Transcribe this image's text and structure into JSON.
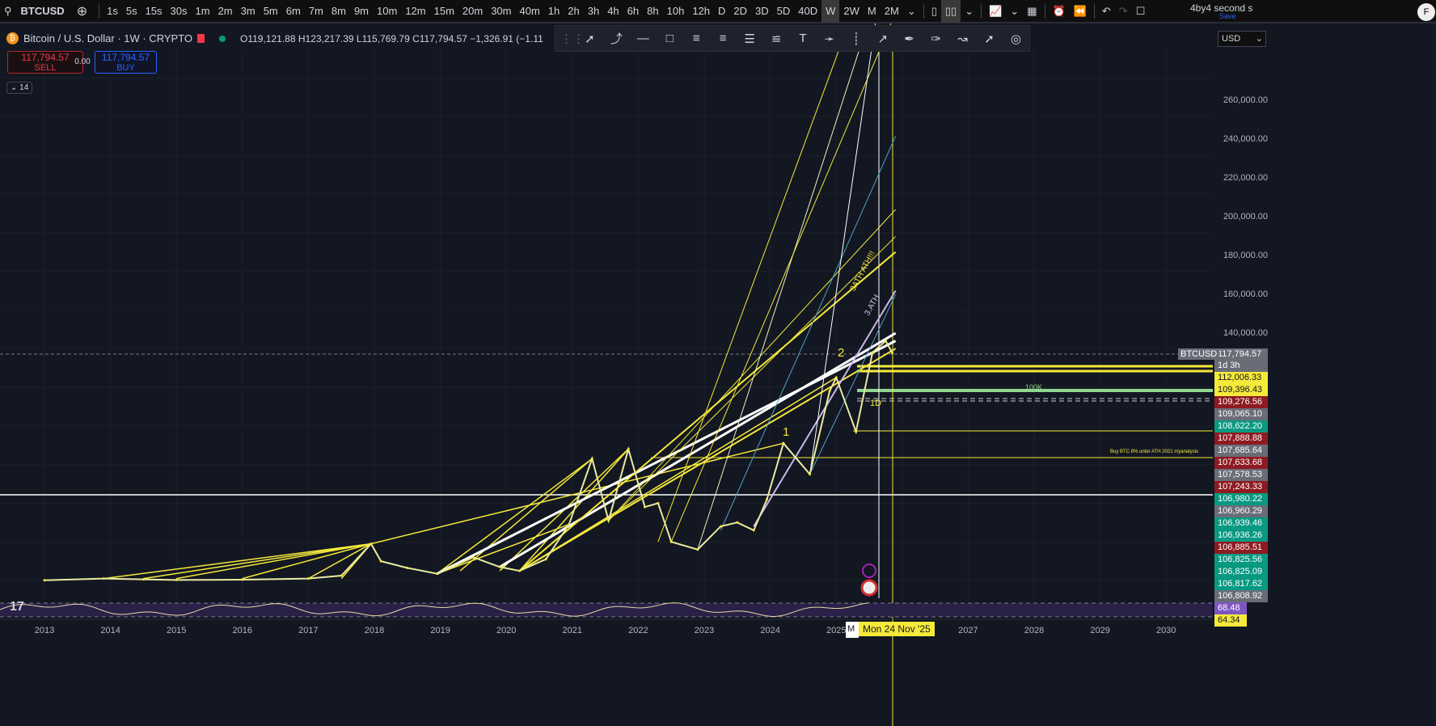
{
  "topbar": {
    "symbol": "BTCUSD",
    "intervals": [
      "1s",
      "5s",
      "15s",
      "30s",
      "1m",
      "2m",
      "3m",
      "5m",
      "6m",
      "7m",
      "8m",
      "9m",
      "10m",
      "12m",
      "15m",
      "20m",
      "30m",
      "40m",
      "1h",
      "2h",
      "3h",
      "4h",
      "6h",
      "8h",
      "10h",
      "12h",
      "D",
      "2D",
      "3D",
      "5D",
      "40D",
      "W",
      "2W",
      "M",
      "2M"
    ],
    "active_interval": "W",
    "layout_name": "4by4 second s",
    "save_label": "Save",
    "avatar_initial": "F"
  },
  "legend": {
    "title": "Bitcoin / U.S. Dollar · 1W · CRYPTO",
    "ohlc": "O119,121.88 H123,217.39 L115,769.79 C117,794.57 −1,326.91 (−1.11",
    "sell_price": "117,794.57",
    "sell_label": "SELL",
    "spread": "0.00",
    "buy_price": "117,794.57",
    "buy_label": "BUY",
    "indicator_count": "14"
  },
  "currency": "USD",
  "price_axis": [
    "260,000.00",
    "240,000.00",
    "220,000.00",
    "200,000.00",
    "180,000.00",
    "160,000.00",
    "140,000.00"
  ],
  "price_tags": [
    {
      "value": "117,794.57",
      "color": "#6a6d78",
      "sub": "1d 3h",
      "label": "BTCUSD"
    },
    {
      "value": "112,006.33",
      "color": "#f5e93a"
    },
    {
      "value": "109,396.43",
      "color": "#f5e93a"
    },
    {
      "value": "109,276.56",
      "color": "#8e1b22"
    },
    {
      "value": "109,065.10",
      "color": "#6a6d78"
    },
    {
      "value": "108,622.20",
      "color": "#089981"
    },
    {
      "value": "107,888.88",
      "color": "#8e1b22"
    },
    {
      "value": "107,685.64",
      "color": "#6a6d78"
    },
    {
      "value": "107,633.68",
      "color": "#8e1b22"
    },
    {
      "value": "107,578.53",
      "color": "#6a6d78"
    },
    {
      "value": "107,243.33",
      "color": "#8e1b22"
    },
    {
      "value": "106,980.22",
      "color": "#089981"
    },
    {
      "value": "106,960.29",
      "color": "#6a6d78"
    },
    {
      "value": "106,939.46",
      "color": "#089981"
    },
    {
      "value": "106,936.26",
      "color": "#089981"
    },
    {
      "value": "106,885.51",
      "color": "#8e1b22"
    },
    {
      "value": "106,825.56",
      "color": "#089981"
    },
    {
      "value": "106,825.09",
      "color": "#089981"
    },
    {
      "value": "106,817.62",
      "color": "#089981"
    },
    {
      "value": "106,808.92",
      "color": "#6a6d78"
    },
    {
      "value": "68.48",
      "color": "#7e57c2"
    },
    {
      "value": "64.34",
      "color": "#f5e93a"
    }
  ],
  "time_axis": [
    "2013",
    "2014",
    "2015",
    "2016",
    "2017",
    "2018",
    "2019",
    "2020",
    "2021",
    "2022",
    "2023",
    "2024",
    "2025",
    "2027",
    "2028",
    "2029",
    "2030"
  ],
  "crosshair_date": "Mon 24 Nov '25",
  "crosshair_date_partial": "M",
  "annotations": {
    "wave1": "1",
    "wave2": "2",
    "one_d": "1D",
    "hundred_k": "100K",
    "buy_note": "Buy BTC 8% unter ATH 2021 myanalysis",
    "ath3": "3.ATH",
    "ath3b": "3ATH ATH!!!"
  },
  "chart_data": {
    "type": "line",
    "series": [
      {
        "x": [
          2013.0,
          2013.9,
          2014.5,
          2015.0,
          2016.0,
          2017.0,
          2017.5,
          2017.95,
          2018.1,
          2018.5,
          2018.95,
          2019.5,
          2019.9,
          2020.2,
          2020.6,
          2020.95,
          2021.3,
          2021.55,
          2021.85,
          2022.1,
          2022.3,
          2022.5,
          2022.9,
          2023.25,
          2023.5,
          2023.75,
          2023.95,
          2024.2,
          2024.6,
          2024.9,
          2025.0,
          2025.3,
          2025.55,
          2025.75,
          2025.85
        ],
        "y": [
          0.1,
          1,
          0.6,
          0.25,
          0.4,
          1,
          2.5,
          19,
          10,
          6.5,
          3.5,
          12,
          7,
          5,
          11,
          29,
          63,
          31,
          68,
          38,
          40,
          20,
          16,
          28,
          30,
          26,
          42,
          71,
          55,
          98,
          105,
          77,
          118,
          124,
          117.8
        ]
      }
    ],
    "y_unit": "thousand USD",
    "ylim": [
      0,
      280
    ],
    "xlim": [
      2012.5,
      2031
    ]
  },
  "colors": {
    "background": "#131722",
    "accent_yellow": "#f5e93a",
    "sell": "#f23645",
    "buy": "#2962ff"
  }
}
